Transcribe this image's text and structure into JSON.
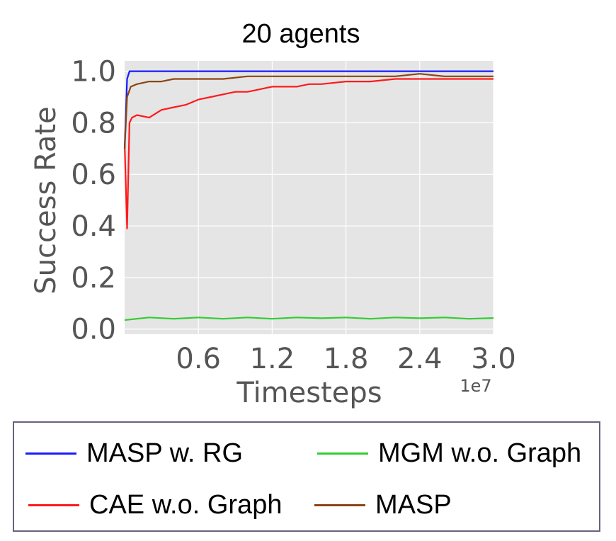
{
  "chart_data": {
    "type": "line",
    "title": "20 agents",
    "xlabel": "Timesteps",
    "ylabel": "Success Rate",
    "x_scale_note": "1e7",
    "xlim": [
      0,
      3.0
    ],
    "ylim": [
      -0.02,
      1.04
    ],
    "xticks": [
      "0.6",
      "1.2",
      "1.8",
      "2.4",
      "3.0"
    ],
    "yticks": [
      "0.0",
      "0.2",
      "0.4",
      "0.6",
      "0.8",
      "1.0"
    ],
    "grid": true,
    "legend_position": "below",
    "series": [
      {
        "name": "MASP w. RG",
        "color": "#1a1aff",
        "x": [
          0.0,
          0.02,
          0.04,
          0.1,
          0.3,
          1.0,
          2.0,
          3.0
        ],
        "y": [
          0.7,
          0.97,
          1.0,
          1.0,
          1.0,
          1.0,
          1.0,
          1.0
        ]
      },
      {
        "name": "MGM w.o. Graph",
        "color": "#33cc33",
        "x": [
          0.0,
          0.2,
          0.4,
          0.6,
          0.8,
          1.0,
          1.2,
          1.4,
          1.6,
          1.8,
          2.0,
          2.2,
          2.4,
          2.6,
          2.8,
          3.0
        ],
        "y": [
          0.035,
          0.045,
          0.04,
          0.045,
          0.04,
          0.045,
          0.04,
          0.045,
          0.042,
          0.045,
          0.04,
          0.045,
          0.042,
          0.045,
          0.04,
          0.043
        ]
      },
      {
        "name": "CAE w.o. Graph",
        "color": "#ff1a1a",
        "x": [
          0.0,
          0.02,
          0.04,
          0.06,
          0.1,
          0.2,
          0.3,
          0.4,
          0.5,
          0.6,
          0.7,
          0.8,
          0.9,
          1.0,
          1.1,
          1.2,
          1.3,
          1.4,
          1.5,
          1.6,
          1.8,
          2.0,
          2.2,
          2.4,
          2.6,
          2.8,
          3.0
        ],
        "y": [
          0.72,
          0.39,
          0.8,
          0.82,
          0.83,
          0.82,
          0.85,
          0.86,
          0.87,
          0.89,
          0.9,
          0.91,
          0.92,
          0.92,
          0.93,
          0.94,
          0.94,
          0.94,
          0.95,
          0.95,
          0.96,
          0.96,
          0.97,
          0.97,
          0.97,
          0.97,
          0.97
        ]
      },
      {
        "name": "MASP",
        "color": "#8b4513",
        "x": [
          0.0,
          0.02,
          0.05,
          0.1,
          0.2,
          0.3,
          0.4,
          0.5,
          0.6,
          0.8,
          1.0,
          1.2,
          1.4,
          1.6,
          1.8,
          2.0,
          2.2,
          2.4,
          2.6,
          2.8,
          3.0
        ],
        "y": [
          0.7,
          0.9,
          0.94,
          0.95,
          0.96,
          0.96,
          0.97,
          0.97,
          0.97,
          0.97,
          0.98,
          0.98,
          0.98,
          0.98,
          0.98,
          0.98,
          0.98,
          0.99,
          0.98,
          0.98,
          0.98
        ]
      }
    ]
  }
}
